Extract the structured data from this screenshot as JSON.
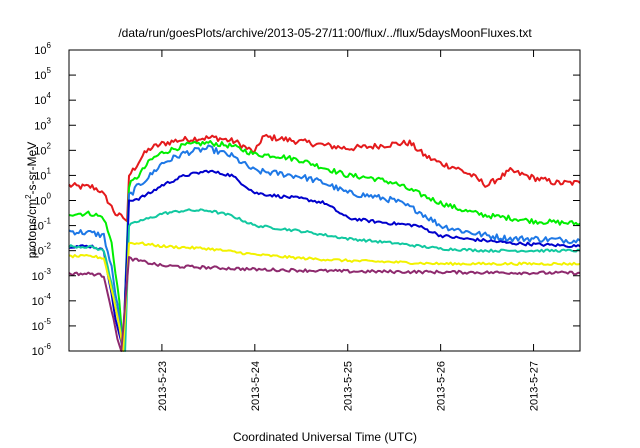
{
  "chart_data": {
    "type": "line",
    "title": "/data/run/goesPlots/archive/2013-05-27/11:00/flux/../flux/5daysMoonFluxes.txt",
    "xlabel": "Coordinated Universal Time (UTC)",
    "ylabel": "protons/cm2-s-sr-MeV",
    "ylabel_parts": {
      "pre": "protons/cm",
      "sup": "2",
      "post": "-s-sr-MeV"
    },
    "y_scale": "log",
    "ylim": [
      1e-06,
      1000000.0
    ],
    "y_ticks": [
      {
        "base": "10",
        "exp": "-6",
        "value": 1e-06
      },
      {
        "base": "10",
        "exp": "-5",
        "value": 1e-05
      },
      {
        "base": "10",
        "exp": "-4",
        "value": 0.0001
      },
      {
        "base": "10",
        "exp": "-3",
        "value": 0.001
      },
      {
        "base": "10",
        "exp": "-2",
        "value": 0.01
      },
      {
        "base": "10",
        "exp": "-1",
        "value": 0.1
      },
      {
        "base": "10",
        "exp": "0",
        "value": 1
      },
      {
        "base": "10",
        "exp": "1",
        "value": 10
      },
      {
        "base": "10",
        "exp": "2",
        "value": 100
      },
      {
        "base": "10",
        "exp": "3",
        "value": 1000
      },
      {
        "base": "10",
        "exp": "4",
        "value": 10000
      },
      {
        "base": "10",
        "exp": "5",
        "value": 100000
      },
      {
        "base": "10",
        "exp": "6",
        "value": 1000000
      }
    ],
    "x_unit": "day",
    "xlim": [
      "2013-05-22T00:00",
      "2013-05-27T12:00"
    ],
    "x_ticks": [
      "2013-5-23",
      "2013-5-24",
      "2013-5-25",
      "2013-5-26",
      "2013-5-27"
    ],
    "grid": false,
    "series": [
      {
        "color": "#e41a1c",
        "noise": 0.12,
        "points": [
          [
            "2013-05-22T00:00",
            4
          ],
          [
            "2013-05-22T03:00",
            3.5
          ],
          [
            "2013-05-22T06:00",
            3.5
          ],
          [
            "2013-05-22T08:00",
            2.5
          ],
          [
            "2013-05-22T10:00",
            1
          ],
          [
            "2013-05-22T12:00",
            0.3
          ],
          [
            "2013-05-22T14:00",
            0.2
          ],
          [
            "2013-05-22T15:00",
            0.15
          ],
          [
            "2013-05-22T15:30",
            10
          ],
          [
            "2013-05-22T17:00",
            20
          ],
          [
            "2013-05-22T19:00",
            60
          ],
          [
            "2013-05-22T21:00",
            120
          ],
          [
            "2013-05-23T00:00",
            180
          ],
          [
            "2013-05-23T04:00",
            250
          ],
          [
            "2013-05-23T09:00",
            300
          ],
          [
            "2013-05-23T14:00",
            320
          ],
          [
            "2013-05-23T19:00",
            220
          ],
          [
            "2013-05-24T00:00",
            80
          ],
          [
            "2013-05-24T02:00",
            350
          ],
          [
            "2013-05-24T06:00",
            300
          ],
          [
            "2013-05-24T12:00",
            220
          ],
          [
            "2013-05-24T18:00",
            160
          ],
          [
            "2013-05-25T00:00",
            120
          ],
          [
            "2013-05-25T06:00",
            140
          ],
          [
            "2013-05-25T12:00",
            180
          ],
          [
            "2013-05-25T16:00",
            200
          ],
          [
            "2013-05-25T20:00",
            60
          ],
          [
            "2013-05-26T00:00",
            30
          ],
          [
            "2013-05-26T04:00",
            20
          ],
          [
            "2013-05-26T08:00",
            10
          ],
          [
            "2013-05-26T12:00",
            4
          ],
          [
            "2013-05-26T18:00",
            15
          ],
          [
            "2013-05-27T00:00",
            8
          ],
          [
            "2013-05-27T06:00",
            5
          ],
          [
            "2013-05-27T12:00",
            5
          ]
        ]
      },
      {
        "color": "#00ee00",
        "noise": 0.1,
        "points": [
          [
            "2013-05-22T00:00",
            0.3
          ],
          [
            "2013-05-22T06:00",
            0.3
          ],
          [
            "2013-05-22T09:00",
            0.2
          ],
          [
            "2013-05-22T11:00",
            0.02
          ],
          [
            "2013-05-22T13:00",
            0.0001
          ],
          [
            "2013-05-22T14:00",
            1e-06
          ],
          [
            "2013-05-22T15:30",
            4
          ],
          [
            "2013-05-22T18:00",
            10
          ],
          [
            "2013-05-22T21:00",
            40
          ],
          [
            "2013-05-23T00:00",
            80
          ],
          [
            "2013-05-23T06:00",
            160
          ],
          [
            "2013-05-23T12:00",
            200
          ],
          [
            "2013-05-23T18:00",
            150
          ],
          [
            "2013-05-24T00:00",
            70
          ],
          [
            "2013-05-24T06:00",
            60
          ],
          [
            "2013-05-24T12:00",
            40
          ],
          [
            "2013-05-24T18:00",
            20
          ],
          [
            "2013-05-25T00:00",
            10
          ],
          [
            "2013-05-25T06:00",
            8
          ],
          [
            "2013-05-25T12:00",
            5
          ],
          [
            "2013-05-25T18:00",
            2
          ],
          [
            "2013-05-26T00:00",
            0.8
          ],
          [
            "2013-05-26T06:00",
            0.4
          ],
          [
            "2013-05-26T12:00",
            0.25
          ],
          [
            "2013-05-26T18:00",
            0.2
          ],
          [
            "2013-05-27T00:00",
            0.15
          ],
          [
            "2013-05-27T12:00",
            0.12
          ]
        ]
      },
      {
        "color": "#1e78e6",
        "noise": 0.12,
        "points": [
          [
            "2013-05-22T00:00",
            0.06
          ],
          [
            "2013-05-22T06:00",
            0.05
          ],
          [
            "2013-05-22T09:00",
            0.04
          ],
          [
            "2013-05-22T11:00",
            0.002
          ],
          [
            "2013-05-22T13:00",
            2e-05
          ],
          [
            "2013-05-22T14:00",
            1e-06
          ],
          [
            "2013-05-22T15:30",
            1.5
          ],
          [
            "2013-05-22T18:00",
            4
          ],
          [
            "2013-05-22T21:00",
            10
          ],
          [
            "2013-05-23T00:00",
            30
          ],
          [
            "2013-05-23T06:00",
            80
          ],
          [
            "2013-05-23T12:00",
            120
          ],
          [
            "2013-05-23T18:00",
            60
          ],
          [
            "2013-05-24T00:00",
            15
          ],
          [
            "2013-05-24T06:00",
            12
          ],
          [
            "2013-05-24T12:00",
            9
          ],
          [
            "2013-05-24T18:00",
            5
          ],
          [
            "2013-05-25T00:00",
            2
          ],
          [
            "2013-05-25T06:00",
            1.5
          ],
          [
            "2013-05-25T12:00",
            1
          ],
          [
            "2013-05-25T18:00",
            0.4
          ],
          [
            "2013-05-26T00:00",
            0.1
          ],
          [
            "2013-05-26T06:00",
            0.06
          ],
          [
            "2013-05-26T12:00",
            0.04
          ],
          [
            "2013-05-26T18:00",
            0.03
          ],
          [
            "2013-05-27T00:00",
            0.03
          ],
          [
            "2013-05-27T12:00",
            0.025
          ]
        ]
      },
      {
        "color": "#0000cc",
        "noise": 0.06,
        "points": [
          [
            "2013-05-22T00:00",
            0.015
          ],
          [
            "2013-05-22T06:00",
            0.015
          ],
          [
            "2013-05-22T09:00",
            0.01
          ],
          [
            "2013-05-22T10:30",
            0.0005
          ],
          [
            "2013-05-22T12:00",
            2e-05
          ],
          [
            "2013-05-22T14:00",
            1e-06
          ],
          [
            "2013-05-22T15:30",
            1
          ],
          [
            "2013-05-22T18:00",
            1.2
          ],
          [
            "2013-05-22T21:00",
            2
          ],
          [
            "2013-05-23T00:00",
            4
          ],
          [
            "2013-05-23T06:00",
            10
          ],
          [
            "2013-05-23T12:00",
            15
          ],
          [
            "2013-05-23T18:00",
            10
          ],
          [
            "2013-05-24T00:00",
            2
          ],
          [
            "2013-05-24T06:00",
            1.5
          ],
          [
            "2013-05-24T12:00",
            1.2
          ],
          [
            "2013-05-24T18:00",
            0.8
          ],
          [
            "2013-05-25T00:00",
            0.2
          ],
          [
            "2013-05-25T06:00",
            0.15
          ],
          [
            "2013-05-25T12:00",
            0.12
          ],
          [
            "2013-05-25T18:00",
            0.1
          ],
          [
            "2013-05-26T00:00",
            0.04
          ],
          [
            "2013-05-26T06:00",
            0.03
          ],
          [
            "2013-05-26T12:00",
            0.025
          ],
          [
            "2013-05-26T18:00",
            0.02
          ],
          [
            "2013-05-27T00:00",
            0.018
          ],
          [
            "2013-05-27T12:00",
            0.015
          ]
        ]
      },
      {
        "color": "#11c8a0",
        "noise": 0.05,
        "points": [
          [
            "2013-05-22T00:00",
            0.015
          ],
          [
            "2013-05-22T06:00",
            0.014
          ],
          [
            "2013-05-22T09:00",
            0.01
          ],
          [
            "2013-05-22T11:00",
            0.0005
          ],
          [
            "2013-05-22T13:00",
            1e-05
          ],
          [
            "2013-05-22T14:30",
            1e-06
          ],
          [
            "2013-05-22T15:30",
            0.1
          ],
          [
            "2013-05-22T18:00",
            0.15
          ],
          [
            "2013-05-22T21:00",
            0.2
          ],
          [
            "2013-05-23T00:00",
            0.3
          ],
          [
            "2013-05-23T06:00",
            0.4
          ],
          [
            "2013-05-23T12:00",
            0.4
          ],
          [
            "2013-05-23T18:00",
            0.25
          ],
          [
            "2013-05-24T00:00",
            0.1
          ],
          [
            "2013-05-24T12:00",
            0.06
          ],
          [
            "2013-05-25T00:00",
            0.03
          ],
          [
            "2013-05-25T12:00",
            0.02
          ],
          [
            "2013-05-26T00:00",
            0.012
          ],
          [
            "2013-05-26T12:00",
            0.01
          ],
          [
            "2013-05-27T00:00",
            0.01
          ],
          [
            "2013-05-27T12:00",
            0.01
          ]
        ]
      },
      {
        "color": "#f2f200",
        "noise": 0.05,
        "points": [
          [
            "2013-05-22T00:00",
            0.006
          ],
          [
            "2013-05-22T06:00",
            0.006
          ],
          [
            "2013-05-22T09:00",
            0.005
          ],
          [
            "2013-05-22T11:00",
            0.0003
          ],
          [
            "2013-05-22T13:00",
            1e-05
          ],
          [
            "2013-05-22T14:00",
            1e-06
          ],
          [
            "2013-05-22T15:30",
            0.02
          ],
          [
            "2013-05-22T18:00",
            0.02
          ],
          [
            "2013-05-23T00:00",
            0.015
          ],
          [
            "2013-05-23T12:00",
            0.012
          ],
          [
            "2013-05-24T00:00",
            0.007
          ],
          [
            "2013-05-24T12:00",
            0.005
          ],
          [
            "2013-05-25T00:00",
            0.004
          ],
          [
            "2013-05-25T12:00",
            0.0035
          ],
          [
            "2013-05-26T00:00",
            0.003
          ],
          [
            "2013-05-27T00:00",
            0.003
          ],
          [
            "2013-05-27T12:00",
            0.003
          ]
        ]
      },
      {
        "color": "#8e2a6e",
        "noise": 0.06,
        "points": [
          [
            "2013-05-22T00:00",
            0.0012
          ],
          [
            "2013-05-22T06:00",
            0.0012
          ],
          [
            "2013-05-22T09:00",
            0.001
          ],
          [
            "2013-05-22T10:30",
            0.0001
          ],
          [
            "2013-05-22T12:30",
            3e-06
          ],
          [
            "2013-05-22T13:30",
            1e-06
          ],
          [
            "2013-05-22T15:30",
            0.005
          ],
          [
            "2013-05-22T18:00",
            0.004
          ],
          [
            "2013-05-23T00:00",
            0.0025
          ],
          [
            "2013-05-24T00:00",
            0.0018
          ],
          [
            "2013-05-25T00:00",
            0.0015
          ],
          [
            "2013-05-26T00:00",
            0.0014
          ],
          [
            "2013-05-27T00:00",
            0.0013
          ],
          [
            "2013-05-27T12:00",
            0.0013
          ]
        ]
      }
    ]
  }
}
